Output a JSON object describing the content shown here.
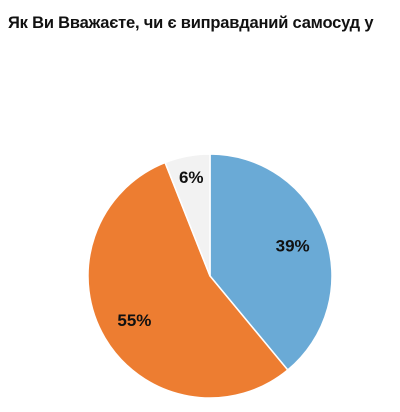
{
  "chart_data": {
    "type": "pie",
    "title": "Як Ви Вважаєте, чи є виправданий самосуд у",
    "categories": [
      "",
      "",
      ""
    ],
    "values": [
      39,
      55,
      6
    ],
    "labels": [
      "39%",
      "55%",
      "6%"
    ],
    "colors": [
      "#6aaad6",
      "#ed7d31",
      "#f2f2f2"
    ],
    "start_angle_deg": 0,
    "direction": "clockwise",
    "legend": "none"
  }
}
